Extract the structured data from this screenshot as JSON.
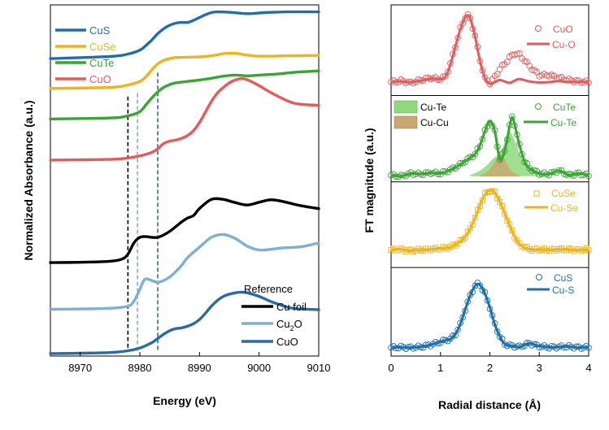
{
  "chart_data": [
    {
      "type": "line",
      "panel": "XANES",
      "xlabel": "Energy (eV)",
      "ylabel": "Normalized Absorbance (a.u.)",
      "xlim": [
        8965,
        9010
      ],
      "ylim": [
        0,
        1
      ],
      "xticks": [
        8970,
        8980,
        8990,
        9000,
        9010
      ],
      "y_ticks_shown": false,
      "legend_top": {
        "placement": "top-left",
        "entries": [
          {
            "label": "CuS",
            "color": "#1f6fae"
          },
          {
            "label": "CuSe",
            "color": "#f2b21c"
          },
          {
            "label": "CuTe",
            "color": "#3aa534"
          },
          {
            "label": "CuO",
            "color": "#e85a5a"
          }
        ]
      },
      "legend_reference": {
        "placement": "bottom-right",
        "title": "Reference",
        "entries": [
          {
            "label": "Cu foil",
            "color": "#000000"
          },
          {
            "label": "Cu",
            "sub": "2",
            "label_after": "O",
            "color": "#7fafd6"
          },
          {
            "label": "CuO",
            "color": "#2a6aa8"
          }
        ]
      },
      "vertical_markers": [
        {
          "x": 8978.0,
          "color": "#000000",
          "dash": true
        },
        {
          "x": 8979.6,
          "color": "#7fafd6",
          "dash": true
        },
        {
          "x": 8983.0,
          "color": "#2a6aa8",
          "dash": true
        }
      ],
      "series": [
        {
          "name": "CuS",
          "color": "#1f6fae",
          "x": [
            8965,
            8975,
            8978,
            8980,
            8981,
            8982,
            8983,
            8984,
            8985,
            8986,
            8987,
            8988,
            8989,
            8990,
            8991,
            8992,
            8993,
            8995,
            8998,
            9001,
            9005,
            9010
          ],
          "y": [
            0.847,
            0.853,
            0.86,
            0.871,
            0.884,
            0.9,
            0.918,
            0.932,
            0.942,
            0.948,
            0.95,
            0.95,
            0.956,
            0.964,
            0.972,
            0.978,
            0.98,
            0.979,
            0.975,
            0.978,
            0.98,
            0.98
          ]
        },
        {
          "name": "CuSe",
          "color": "#f2b21c",
          "x": [
            8965,
            8975,
            8978,
            8980,
            8981,
            8982,
            8983,
            8984,
            8985,
            8986,
            8988,
            8990,
            8992,
            8994,
            8996,
            8998,
            9000,
            9005,
            9010
          ],
          "y": [
            0.762,
            0.765,
            0.772,
            0.782,
            0.795,
            0.815,
            0.832,
            0.842,
            0.847,
            0.85,
            0.851,
            0.852,
            0.855,
            0.861,
            0.862,
            0.857,
            0.854,
            0.855,
            0.856
          ]
        },
        {
          "name": "CuTe",
          "color": "#3aa534",
          "x": [
            8965,
            8975,
            8978,
            8980,
            8981,
            8982,
            8983,
            8984,
            8985,
            8986,
            8987,
            8988,
            8990,
            8992,
            8994,
            8996,
            8998,
            9000,
            9003,
            9006,
            9010
          ],
          "y": [
            0.675,
            0.678,
            0.684,
            0.696,
            0.715,
            0.735,
            0.752,
            0.765,
            0.773,
            0.778,
            0.78,
            0.782,
            0.786,
            0.791,
            0.797,
            0.8,
            0.798,
            0.8,
            0.803,
            0.808,
            0.812
          ]
        },
        {
          "name": "CuO",
          "color": "#e85a5a",
          "x": [
            8965,
            8975,
            8978,
            8980,
            8982,
            8983,
            8984,
            8985,
            8986,
            8987,
            8988,
            8989,
            8990,
            8991,
            8992,
            8993,
            8994,
            8995,
            8996,
            8997,
            8998,
            9000,
            9002,
            9005,
            9007,
            9010
          ],
          "y": [
            0.558,
            0.56,
            0.564,
            0.57,
            0.58,
            0.59,
            0.605,
            0.612,
            0.615,
            0.62,
            0.628,
            0.642,
            0.665,
            0.695,
            0.725,
            0.749,
            0.765,
            0.778,
            0.786,
            0.79,
            0.787,
            0.77,
            0.75,
            0.725,
            0.717,
            0.714
          ]
        },
        {
          "name": "Cu foil",
          "color": "#000000",
          "x": [
            8965,
            8970,
            8975,
            8977,
            8978,
            8979,
            8980,
            8981,
            8982,
            8983,
            8984,
            8985,
            8986,
            8987,
            8988,
            8989,
            8990,
            8992,
            8994,
            8996,
            8998,
            9000,
            9002,
            9004,
            9007,
            9010
          ],
          "y": [
            0.266,
            0.267,
            0.27,
            0.276,
            0.29,
            0.322,
            0.338,
            0.34,
            0.338,
            0.338,
            0.345,
            0.355,
            0.368,
            0.382,
            0.393,
            0.4,
            0.42,
            0.446,
            0.446,
            0.437,
            0.43,
            0.438,
            0.445,
            0.44,
            0.428,
            0.42
          ]
        },
        {
          "name": "Cu2O",
          "color": "#7fafd6",
          "x": [
            8965,
            8970,
            8975,
            8978,
            8979,
            8980,
            8980.5,
            8981,
            8982,
            8983,
            8984,
            8985,
            8986,
            8987,
            8988,
            8990,
            8992,
            8994,
            8996,
            8998,
            9000,
            9002,
            9004,
            9007,
            9010
          ],
          "y": [
            0.133,
            0.134,
            0.136,
            0.142,
            0.156,
            0.19,
            0.21,
            0.22,
            0.215,
            0.21,
            0.215,
            0.225,
            0.24,
            0.258,
            0.28,
            0.31,
            0.338,
            0.346,
            0.335,
            0.313,
            0.302,
            0.304,
            0.308,
            0.311,
            0.322
          ]
        },
        {
          "name": "CuO (ref)",
          "color": "#2a6aa8",
          "x": [
            8965,
            8970,
            8975,
            8978,
            8980,
            8982,
            8983,
            8984,
            8985,
            8986,
            8987,
            8988,
            8989,
            8990,
            8991,
            8992,
            8993,
            8994,
            8995,
            8996,
            8997,
            8998,
            9000,
            9002,
            9005,
            9007,
            9010
          ],
          "y": [
            0.007,
            0.008,
            0.01,
            0.015,
            0.023,
            0.038,
            0.05,
            0.062,
            0.072,
            0.078,
            0.08,
            0.085,
            0.092,
            0.104,
            0.122,
            0.142,
            0.158,
            0.17,
            0.176,
            0.18,
            0.182,
            0.18,
            0.17,
            0.155,
            0.138,
            0.134,
            0.132
          ]
        }
      ]
    },
    {
      "type": "line",
      "panel": "EXAFS",
      "xlabel": "Radial distance (Å)",
      "ylabel": "FT magnitude (a.u.)",
      "xlim": [
        0,
        4
      ],
      "ylim": [
        0,
        1
      ],
      "xticks": [
        0,
        1,
        2,
        3,
        4
      ],
      "y_ticks_shown": false,
      "fill_legend": [
        {
          "label": "Cu-Te",
          "color": "#8fd87e"
        },
        {
          "label": "Cu-Cu",
          "color": "#c8a870"
        }
      ],
      "fills": [
        {
          "name": "Cu-Te",
          "color": "#8fd87e",
          "x": [
            1.6,
            1.8,
            1.95,
            2.05,
            2.15,
            2.25,
            2.32,
            2.38,
            2.45,
            2.55,
            2.65,
            2.8,
            3.0,
            3.2
          ],
          "y": [
            0.515,
            0.528,
            0.545,
            0.56,
            0.572,
            0.59,
            0.62,
            0.64,
            0.63,
            0.595,
            0.56,
            0.54,
            0.524,
            0.517
          ]
        },
        {
          "name": "Cu-Cu",
          "color": "#c8a870",
          "x": [
            1.8,
            1.95,
            2.05,
            2.12,
            2.18,
            2.22,
            2.28,
            2.35,
            2.45,
            2.6
          ],
          "y": [
            0.514,
            0.525,
            0.542,
            0.558,
            0.572,
            0.575,
            0.566,
            0.545,
            0.525,
            0.514
          ]
        }
      ],
      "panels": [
        {
          "name": "CuO",
          "color": "#e85a5a",
          "marker": "circle",
          "legend": {
            "data_label": "CuO",
            "fit_label": "Cu-O"
          },
          "fit_x": [
            0,
            0.2,
            0.4,
            0.6,
            0.8,
            1.0,
            1.1,
            1.2,
            1.3,
            1.4,
            1.5,
            1.55,
            1.6,
            1.7,
            1.8,
            1.9,
            2.0,
            2.1,
            2.2,
            2.3,
            2.4,
            2.5,
            2.6,
            2.8,
            3.0,
            3.2,
            3.4,
            3.6,
            3.8,
            4.0
          ],
          "fit_y": [
            0.78,
            0.782,
            0.78,
            0.784,
            0.79,
            0.788,
            0.795,
            0.83,
            0.88,
            0.93,
            0.965,
            0.97,
            0.962,
            0.91,
            0.84,
            0.792,
            0.775,
            0.78,
            0.786,
            0.782,
            0.778,
            0.784,
            0.789,
            0.782,
            0.779,
            0.78,
            0.783,
            0.78,
            0.781,
            0.78
          ],
          "data_x": [
            0,
            0.2,
            0.4,
            0.6,
            0.8,
            1.0,
            1.1,
            1.2,
            1.3,
            1.4,
            1.5,
            1.55,
            1.6,
            1.7,
            1.8,
            1.9,
            2.0,
            2.1,
            2.2,
            2.3,
            2.4,
            2.5,
            2.6,
            2.7,
            2.8,
            2.9,
            3.0,
            3.2,
            3.4,
            3.6,
            3.8,
            4.0
          ],
          "data_y": [
            0.78,
            0.784,
            0.778,
            0.786,
            0.792,
            0.788,
            0.796,
            0.832,
            0.882,
            0.932,
            0.965,
            0.97,
            0.96,
            0.912,
            0.842,
            0.79,
            0.778,
            0.795,
            0.818,
            0.832,
            0.85,
            0.862,
            0.858,
            0.842,
            0.826,
            0.812,
            0.8,
            0.8,
            0.792,
            0.786,
            0.782,
            0.78
          ]
        },
        {
          "name": "CuTe",
          "color": "#3aa534",
          "marker": "circle",
          "legend": {
            "data_label": "CuTe",
            "fit_label": "Cu-Te"
          },
          "fit_x": [
            0,
            0.2,
            0.4,
            0.6,
            0.8,
            1.0,
            1.2,
            1.4,
            1.6,
            1.7,
            1.8,
            1.9,
            2.0,
            2.1,
            2.2,
            2.3,
            2.4,
            2.45,
            2.5,
            2.6,
            2.7,
            2.8,
            3.0,
            3.2,
            3.4,
            3.6,
            3.8,
            4.0
          ],
          "fit_y": [
            0.515,
            0.512,
            0.52,
            0.518,
            0.522,
            0.52,
            0.53,
            0.545,
            0.565,
            0.575,
            0.6,
            0.64,
            0.668,
            0.64,
            0.56,
            0.585,
            0.655,
            0.68,
            0.66,
            0.6,
            0.555,
            0.535,
            0.52,
            0.518,
            0.528,
            0.515,
            0.52,
            0.514
          ]
        },
        {
          "name": "CuSe",
          "color": "#f2b21c",
          "marker": "square",
          "legend": {
            "data_label": "CuSe",
            "fit_label": "Cu-Se"
          },
          "fit_x": [
            0,
            0.2,
            0.4,
            0.6,
            0.8,
            1.0,
            1.2,
            1.4,
            1.5,
            1.6,
            1.7,
            1.8,
            1.9,
            2.0,
            2.1,
            2.2,
            2.3,
            2.4,
            2.5,
            2.6,
            2.8,
            3.0,
            3.2,
            3.4,
            3.6,
            3.8,
            4.0
          ],
          "fit_y": [
            0.302,
            0.304,
            0.3,
            0.302,
            0.304,
            0.306,
            0.31,
            0.326,
            0.34,
            0.362,
            0.394,
            0.43,
            0.46,
            0.472,
            0.465,
            0.44,
            0.406,
            0.372,
            0.34,
            0.318,
            0.304,
            0.303,
            0.302,
            0.304,
            0.303,
            0.302,
            0.303
          ]
        },
        {
          "name": "CuS",
          "color": "#1f6fae",
          "marker": "circle",
          "legend": {
            "data_label": "CuS",
            "fit_label": "Cu-S"
          },
          "fit_x": [
            0,
            0.2,
            0.4,
            0.6,
            0.8,
            1.0,
            1.1,
            1.2,
            1.3,
            1.4,
            1.5,
            1.6,
            1.7,
            1.75,
            1.8,
            1.9,
            2.0,
            2.1,
            2.2,
            2.3,
            2.4,
            2.6,
            2.8,
            3.0,
            3.2,
            3.4,
            3.6,
            3.8,
            4.0
          ],
          "fit_y": [
            0.024,
            0.025,
            0.024,
            0.026,
            0.032,
            0.04,
            0.045,
            0.048,
            0.062,
            0.09,
            0.132,
            0.172,
            0.2,
            0.205,
            0.202,
            0.178,
            0.138,
            0.09,
            0.056,
            0.034,
            0.03,
            0.026,
            0.036,
            0.028,
            0.025,
            0.026,
            0.027,
            0.024,
            0.025
          ]
        }
      ]
    }
  ]
}
